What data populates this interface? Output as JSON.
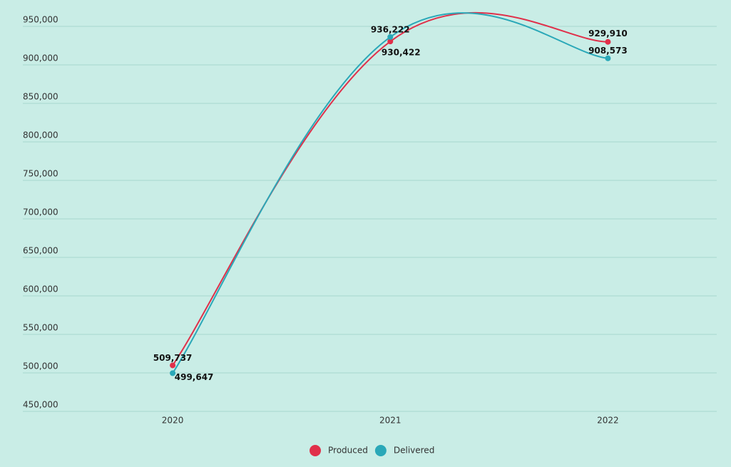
{
  "chart_data": {
    "type": "line",
    "categories": [
      "2020",
      "2021",
      "2022"
    ],
    "series": [
      {
        "name": "Produced",
        "color": "#e0304a",
        "values": [
          509737,
          930422,
          929910
        ],
        "value_labels": [
          "509,737",
          "930,422",
          "929,910"
        ]
      },
      {
        "name": "Delivered",
        "color": "#2aa8b8",
        "values": [
          499647,
          936222,
          908573
        ],
        "value_labels": [
          "499,647",
          "936,222",
          "908,573"
        ]
      }
    ],
    "ylim": [
      450000,
      950000
    ],
    "yticks": [
      {
        "value": 450000,
        "label": "450,000"
      },
      {
        "value": 500000,
        "label": "500,000"
      },
      {
        "value": 550000,
        "label": "550,000"
      },
      {
        "value": 600000,
        "label": "600,000"
      },
      {
        "value": 650000,
        "label": "650,000"
      },
      {
        "value": 700000,
        "label": "700,000"
      },
      {
        "value": 750000,
        "label": "750,000"
      },
      {
        "value": 800000,
        "label": "800,000"
      },
      {
        "value": 850000,
        "label": "850,000"
      },
      {
        "value": 900000,
        "label": "900,000"
      },
      {
        "value": 950000,
        "label": "950,000"
      }
    ],
    "grid": true
  }
}
